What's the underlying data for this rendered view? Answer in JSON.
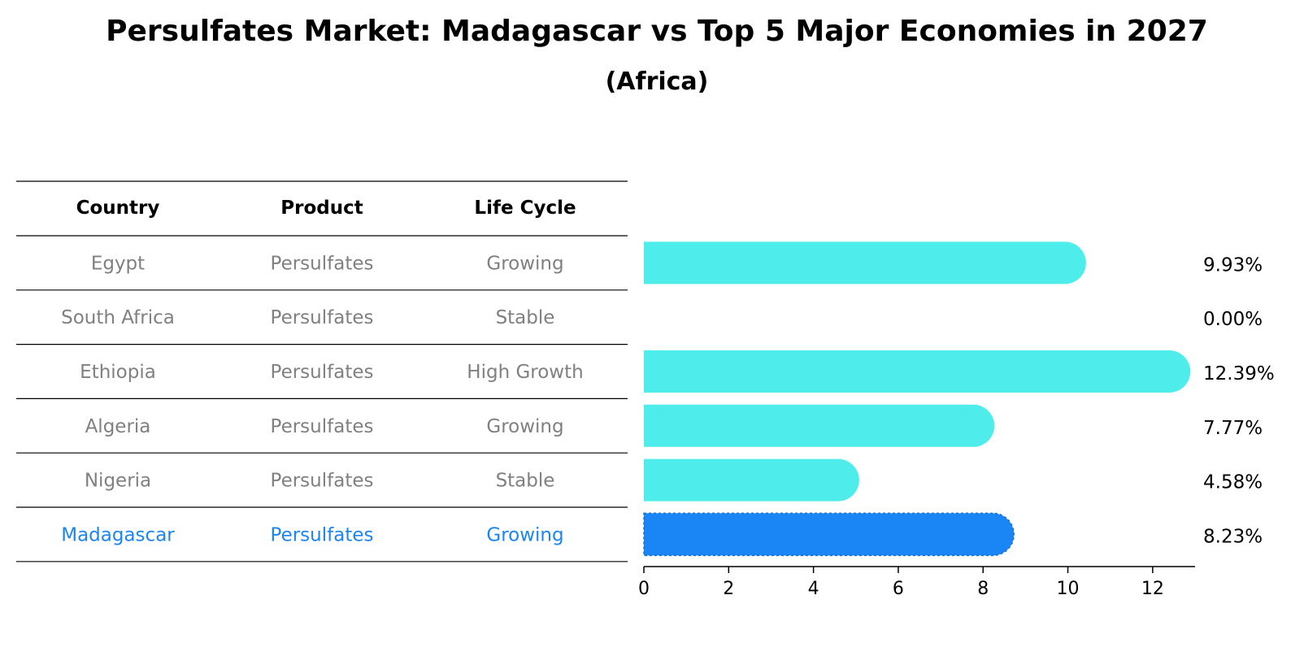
{
  "chart_data": {
    "type": "table+bar",
    "title": "Persulfates Market: Madagascar vs Top 5 Major Economies in 2027",
    "subtitle": "(Africa)",
    "table": {
      "columns": [
        "Country",
        "Product",
        "Life Cycle"
      ],
      "rows": [
        {
          "country": "Egypt",
          "product": "Persulfates",
          "life_cycle": "Growing",
          "highlight": false
        },
        {
          "country": "South Africa",
          "product": "Persulfates",
          "life_cycle": "Stable",
          "highlight": false
        },
        {
          "country": "Ethiopia",
          "product": "Persulfates",
          "life_cycle": "High Growth",
          "highlight": false
        },
        {
          "country": "Algeria",
          "product": "Persulfates",
          "life_cycle": "Growing",
          "highlight": false
        },
        {
          "country": "Nigeria",
          "product": "Persulfates",
          "life_cycle": "Stable",
          "highlight": false
        },
        {
          "country": "Madagascar",
          "product": "Persulfates",
          "life_cycle": "Growing",
          "highlight": true
        }
      ]
    },
    "values": [
      9.93,
      0.0,
      12.39,
      7.77,
      4.58,
      8.23
    ],
    "value_labels": [
      "9.93%",
      "0.00%",
      "12.39%",
      "7.77%",
      "4.58%",
      "8.23%"
    ],
    "xlim": [
      0,
      13
    ],
    "xticks": [
      0,
      2,
      4,
      6,
      8,
      10,
      12
    ],
    "colors": {
      "bar": "#4EEDEB",
      "highlight_bar": "#1A85F5",
      "highlight_text": "#1A85F5",
      "muted_text": "#808080",
      "text": "#000000",
      "rule": "#000000"
    }
  }
}
